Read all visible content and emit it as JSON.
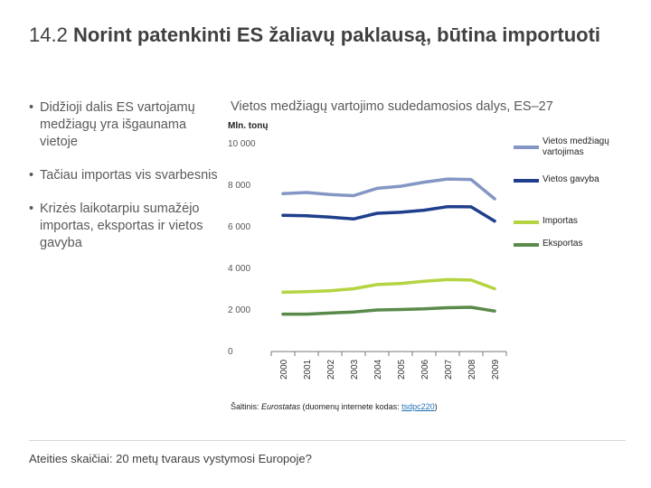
{
  "slide": {
    "title_number": "14.2",
    "title_text": "Norint patenkinti ES žaliavų paklausą, būtina importuoti",
    "bullets": [
      "Didžioji dalis ES vartojamų medžiagų yra išgaunama vietoje",
      "Tačiau importas vis svarbesnis",
      "Krizės laikotarpiu sumažėjo importas, eksportas ir vietos gavyba"
    ],
    "bullet_symbol": "•",
    "source_prefix": "Šaltinis: ",
    "source_name": "Eurostatas",
    "source_middle": " (duomenų internete kodas: ",
    "source_code": "tsdpc220",
    "source_suffix": ")",
    "footer": "Ateities skaičiai: 20 metų tvaraus vystymosi Europoje?"
  },
  "chart_data": {
    "type": "line",
    "title": "Vietos medžiagų vartojimo sudedamosios dalys, ES–27",
    "ylabel": "Mln. tonų",
    "xlabel": "",
    "ylim": [
      0,
      10000
    ],
    "yticks": [
      0,
      2000,
      4000,
      6000,
      8000,
      10000
    ],
    "ytick_labels": [
      "0",
      "2 000",
      "4 000",
      "6 000",
      "8 000",
      "10 000"
    ],
    "categories": [
      "2000",
      "2001",
      "2002",
      "2003",
      "2004",
      "2005",
      "2006",
      "2007",
      "2008",
      "2009"
    ],
    "grid": false,
    "legend_position": "right",
    "series": [
      {
        "name": "Vietos medžiagų vartojimas",
        "color": "#8497c4",
        "values": [
          7600,
          7650,
          7550,
          7500,
          7850,
          7950,
          8150,
          8300,
          8280,
          7350
        ]
      },
      {
        "name": "Vietos gavyba",
        "color": "#1f3f8c",
        "values": [
          6550,
          6530,
          6470,
          6380,
          6650,
          6700,
          6800,
          6970,
          6960,
          6280
        ]
      },
      {
        "name": "Importas",
        "color": "#b4d442",
        "values": [
          2850,
          2880,
          2920,
          3020,
          3220,
          3270,
          3380,
          3460,
          3440,
          3020
        ]
      },
      {
        "name": "Eksportas",
        "color": "#5a8a4a",
        "values": [
          1800,
          1800,
          1850,
          1900,
          2000,
          2020,
          2050,
          2110,
          2130,
          1950
        ]
      }
    ]
  }
}
